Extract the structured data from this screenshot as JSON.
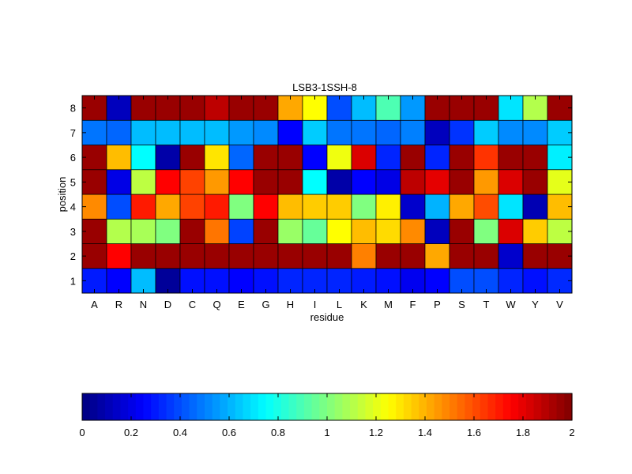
{
  "chart_data": [
    {
      "type": "heatmap",
      "title": "LSB3-1SSH-8",
      "xlabel": "residue",
      "ylabel": "position",
      "x_categories": [
        "A",
        "R",
        "N",
        "D",
        "C",
        "Q",
        "E",
        "G",
        "H",
        "I",
        "L",
        "K",
        "M",
        "F",
        "P",
        "S",
        "T",
        "W",
        "Y",
        "V"
      ],
      "y_categories": [
        "1",
        "2",
        "3",
        "4",
        "5",
        "6",
        "7",
        "8"
      ],
      "clim": [
        0,
        2
      ],
      "colormap": "jet",
      "values": [
        [
          0.3,
          0.25,
          0.62,
          0.05,
          0.28,
          0.28,
          0.25,
          0.28,
          0.32,
          0.32,
          0.32,
          0.3,
          0.28,
          0.22,
          0.25,
          0.4,
          0.4,
          0.32,
          0.28,
          0.33
        ],
        [
          1.95,
          1.75,
          1.95,
          1.95,
          1.95,
          1.95,
          1.95,
          1.95,
          1.95,
          1.95,
          1.95,
          1.5,
          1.95,
          1.95,
          1.42,
          1.95,
          1.95,
          0.15,
          1.95,
          1.95
        ],
        [
          1.95,
          1.1,
          1.08,
          1.0,
          1.95,
          1.52,
          0.38,
          1.95,
          1.05,
          0.95,
          1.25,
          1.38,
          1.32,
          1.48,
          0.12,
          1.95,
          1.0,
          1.82,
          1.35,
          1.12
        ],
        [
          1.48,
          0.4,
          1.7,
          1.42,
          1.62,
          1.7,
          1.0,
          1.75,
          1.38,
          1.35,
          1.35,
          1.0,
          1.28,
          0.15,
          0.6,
          1.42,
          1.6,
          0.7,
          0.1,
          1.38
        ],
        [
          1.95,
          0.2,
          1.12,
          1.75,
          1.62,
          1.45,
          1.75,
          1.95,
          1.95,
          0.75,
          0.08,
          0.25,
          0.2,
          1.88,
          1.8,
          1.95,
          1.45,
          1.82,
          1.95,
          1.2
        ],
        [
          1.95,
          1.38,
          0.75,
          0.08,
          1.95,
          1.3,
          0.45,
          1.95,
          1.95,
          0.25,
          1.22,
          1.82,
          0.32,
          1.95,
          0.32,
          1.95,
          1.65,
          1.95,
          1.95,
          0.72
        ],
        [
          0.48,
          0.45,
          0.62,
          0.62,
          0.62,
          0.62,
          0.55,
          0.52,
          0.25,
          0.65,
          0.48,
          0.48,
          0.45,
          0.5,
          0.12,
          0.35,
          0.65,
          0.52,
          0.52,
          0.65
        ],
        [
          1.95,
          0.12,
          1.95,
          1.95,
          1.95,
          1.88,
          1.95,
          1.95,
          1.42,
          1.25,
          0.4,
          0.62,
          0.9,
          0.55,
          1.95,
          1.95,
          1.95,
          0.7,
          1.1,
          1.95
        ]
      ],
      "colorbar": {
        "orientation": "horizontal",
        "ticks": [
          0,
          0.2,
          0.4,
          0.6,
          0.8,
          1,
          1.2,
          1.4,
          1.6,
          1.8,
          2
        ],
        "tick_labels": [
          "0",
          "0.2",
          "0.4",
          "0.6",
          "0.8",
          "1",
          "1.2",
          "1.4",
          "1.6",
          "1.8",
          "2"
        ],
        "levels": 64
      }
    }
  ]
}
